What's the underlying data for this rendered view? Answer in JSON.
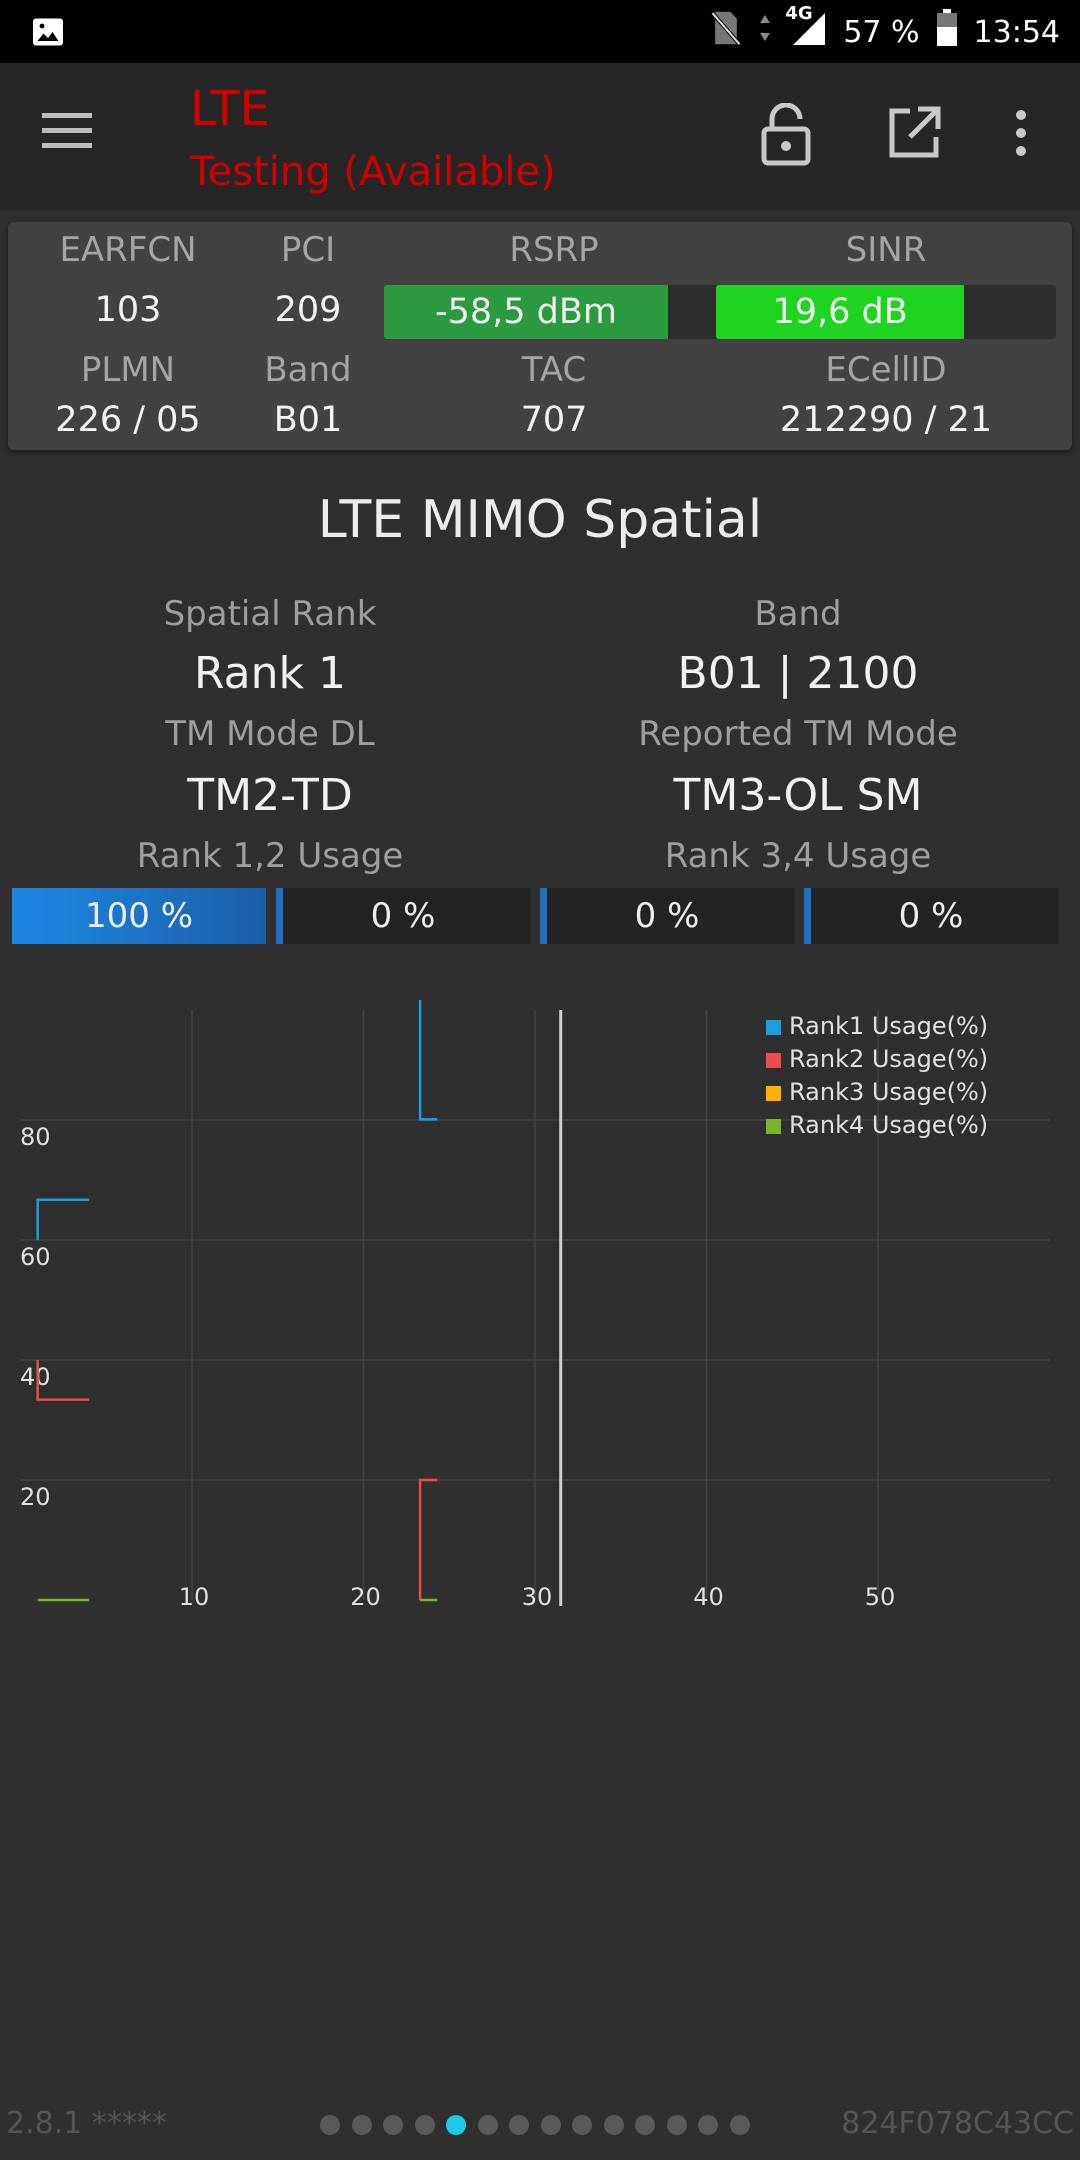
{
  "status_bar": {
    "network": "4G",
    "battery": "57 %",
    "time": "13:54"
  },
  "app_bar": {
    "title": "LTE",
    "subtitle": "Testing (Available)",
    "icons": [
      "menu-icon",
      "lock-open-icon",
      "open-external-icon",
      "more-vert-icon"
    ]
  },
  "info_panel": {
    "earfcn_label": "EARFCN",
    "earfcn": "103",
    "pci_label": "PCI",
    "pci": "209",
    "rsrp_label": "RSRP",
    "rsrp": "-58,5 dBm",
    "rsrp_level": 0.85,
    "rsrp_color": "#2c9a3f",
    "sinr_label": "SINR",
    "sinr": "19,6 dB",
    "sinr_level": 0.73,
    "sinr_color": "#1fd321",
    "plmn_label": "PLMN",
    "plmn": "226 / 05",
    "band_label": "Band",
    "band": "B01",
    "tac_label": "TAC",
    "tac": "707",
    "ecellid_label": "ECellID",
    "ecellid": "212290 / 21"
  },
  "mimo": {
    "title": "LTE MIMO Spatial",
    "spatial_rank_label": "Spatial Rank",
    "spatial_rank": "Rank 1",
    "band_label": "Band",
    "band": "B01 | 2100",
    "tm_mode_label": "TM Mode DL",
    "tm_mode": "TM2-TD",
    "reported_tm_label": "Reported TM Mode",
    "reported_tm": "TM3-OL SM",
    "rank12_label": "Rank 1,2 Usage",
    "rank34_label": "Rank 3,4 Usage",
    "usage": [
      {
        "text": "100 %",
        "value": 100
      },
      {
        "text": "0 %",
        "value": 0
      },
      {
        "text": "0 %",
        "value": 0
      },
      {
        "text": "0 %",
        "value": 0
      }
    ]
  },
  "chart_data": {
    "type": "line",
    "x_ticks": [
      10,
      20,
      30,
      40,
      50
    ],
    "y_ticks": [
      20,
      40,
      60,
      80
    ],
    "xlim": [
      0,
      60
    ],
    "ylim": [
      0,
      100
    ],
    "cursor_x": 31.5,
    "grid": true,
    "legend_position": "top-right",
    "series": [
      {
        "name": "Rank1 Usage(%)",
        "color": "#1aa0dc",
        "segments": [
          [
            [
              1,
              60
            ],
            [
              1,
              66.7
            ],
            [
              4,
              66.7
            ]
          ],
          [
            [
              23.3,
              100
            ],
            [
              23.3,
              80.1
            ],
            [
              24.3,
              80.1
            ]
          ]
        ]
      },
      {
        "name": "Rank2 Usage(%)",
        "color": "#f04a4a",
        "segments": [
          [
            [
              1,
              40
            ],
            [
              1,
              33.4
            ],
            [
              4,
              33.4
            ]
          ],
          [
            [
              24.3,
              20
            ],
            [
              23.3,
              20
            ],
            [
              23.3,
              0
            ]
          ]
        ]
      },
      {
        "name": "Rank3 Usage(%)",
        "color": "#ffb300",
        "segments": []
      },
      {
        "name": "Rank4 Usage(%)",
        "color": "#76b82a",
        "segments": [
          [
            [
              1,
              0
            ],
            [
              4,
              0
            ]
          ],
          [
            [
              23.3,
              0
            ],
            [
              24.3,
              0
            ]
          ]
        ]
      }
    ]
  },
  "footer": {
    "version": "2.8.1 *****",
    "device_id": "824F078C43CC",
    "page_count": 14,
    "active_page": 4
  }
}
